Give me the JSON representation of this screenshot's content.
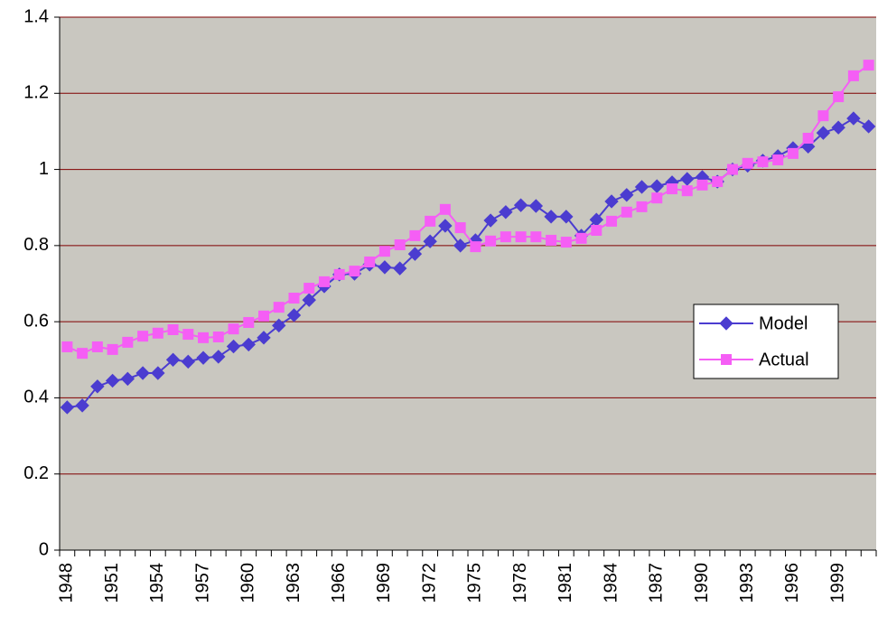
{
  "chart_data": {
    "type": "line",
    "categories": [
      "1948",
      null,
      null,
      "1951",
      null,
      null,
      "1954",
      null,
      null,
      "1957",
      null,
      null,
      "1960",
      null,
      null,
      "1963",
      null,
      null,
      "1966",
      null,
      null,
      "1969",
      null,
      null,
      "1972",
      null,
      null,
      "1975",
      null,
      null,
      "1978",
      null,
      null,
      "1981",
      null,
      null,
      "1984",
      null,
      null,
      "1987",
      null,
      null,
      "1990",
      null,
      null,
      "1993",
      null,
      null,
      "1996",
      null,
      null,
      "1999",
      null,
      null
    ],
    "series": [
      {
        "name": "Model",
        "color": "#4b3cd0",
        "marker": "diamond",
        "values": [
          0.375,
          0.38,
          0.43,
          0.445,
          0.45,
          0.465,
          0.465,
          0.5,
          0.495,
          0.505,
          0.508,
          0.535,
          0.54,
          0.558,
          0.59,
          0.617,
          0.657,
          0.693,
          0.724,
          0.726,
          0.75,
          0.743,
          0.74,
          0.778,
          0.811,
          0.852,
          0.8,
          0.814,
          0.866,
          0.888,
          0.906,
          0.904,
          0.876,
          0.876,
          0.826,
          0.868,
          0.916,
          0.933,
          0.954,
          0.956,
          0.966,
          0.975,
          0.98,
          0.968,
          1.0,
          1.01,
          1.023,
          1.035,
          1.056,
          1.06,
          1.096,
          1.11,
          1.134,
          1.113
        ]
      },
      {
        "name": "Actual",
        "color": "#f55ef5",
        "marker": "square",
        "values": [
          0.534,
          0.517,
          0.534,
          0.527,
          0.546,
          0.562,
          0.57,
          0.579,
          0.567,
          0.558,
          0.56,
          0.581,
          0.598,
          0.615,
          0.638,
          0.662,
          0.688,
          0.705,
          0.724,
          0.733,
          0.757,
          0.785,
          0.802,
          0.826,
          0.864,
          0.895,
          0.847,
          0.797,
          0.812,
          0.823,
          0.823,
          0.823,
          0.814,
          0.809,
          0.819,
          0.84,
          0.864,
          0.888,
          0.902,
          0.925,
          0.949,
          0.944,
          0.959,
          0.968,
          1.0,
          1.016,
          1.02,
          1.025,
          1.042,
          1.082,
          1.141,
          1.191,
          1.246,
          1.274
        ]
      }
    ],
    "ylim": [
      0,
      1.4
    ],
    "yticks": [
      0,
      0.2,
      0.4,
      0.6,
      0.8,
      1,
      1.2,
      1.4
    ],
    "grid": true,
    "grid_color": "#800000",
    "plot_background": "#c9c7c0"
  }
}
